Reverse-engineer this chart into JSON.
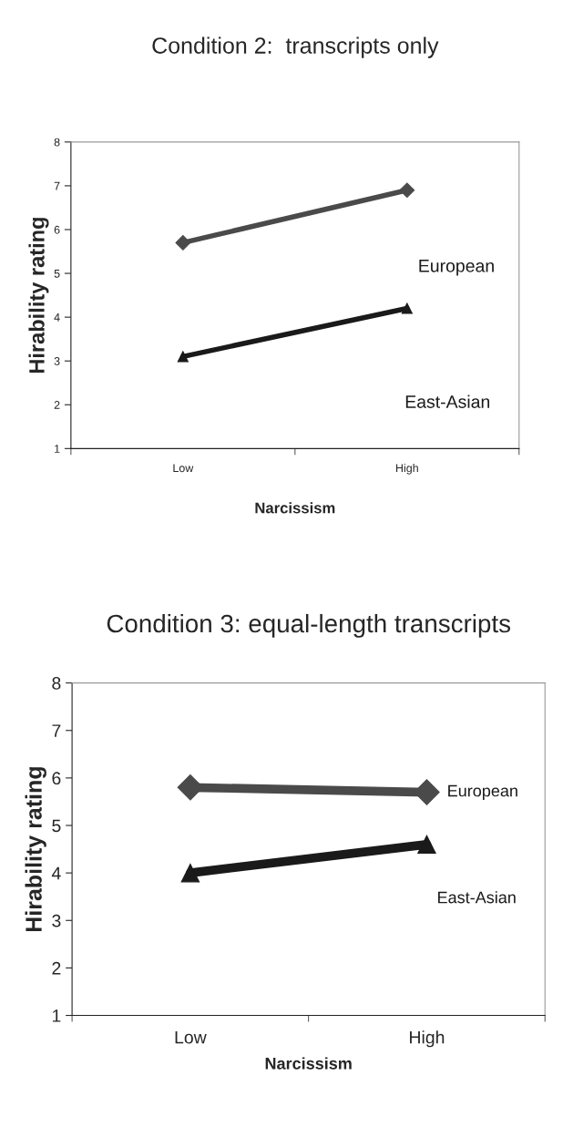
{
  "chart_data": [
    {
      "type": "line",
      "title": "Condition 2:  transcripts only",
      "xlabel": "Narcissism",
      "ylabel": "Hirability rating",
      "categories": [
        "Low",
        "High"
      ],
      "ylim": [
        1,
        8
      ],
      "yticks": [
        1,
        2,
        3,
        4,
        5,
        6,
        7,
        8
      ],
      "grid": false,
      "legend": false,
      "series": [
        {
          "name": "European",
          "color": "#4a4a4a",
          "marker": "diamond",
          "values": [
            5.7,
            6.9
          ]
        },
        {
          "name": "East-Asian",
          "color": "#1a1a1a",
          "marker": "triangle",
          "values": [
            3.1,
            4.2
          ]
        }
      ]
    },
    {
      "type": "line",
      "title": "Condition 3: equal-length transcripts",
      "xlabel": "Narcissism",
      "ylabel": "Hirability rating",
      "categories": [
        "Low",
        "High"
      ],
      "ylim": [
        1,
        8
      ],
      "yticks": [
        1,
        2,
        3,
        4,
        5,
        6,
        7,
        8
      ],
      "grid": false,
      "legend": false,
      "series": [
        {
          "name": "European",
          "color": "#4a4a4a",
          "marker": "diamond",
          "values": [
            5.8,
            5.7
          ]
        },
        {
          "name": "East-Asian",
          "color": "#1a1a1a",
          "marker": "triangle",
          "values": [
            4.0,
            4.6
          ]
        }
      ]
    }
  ]
}
